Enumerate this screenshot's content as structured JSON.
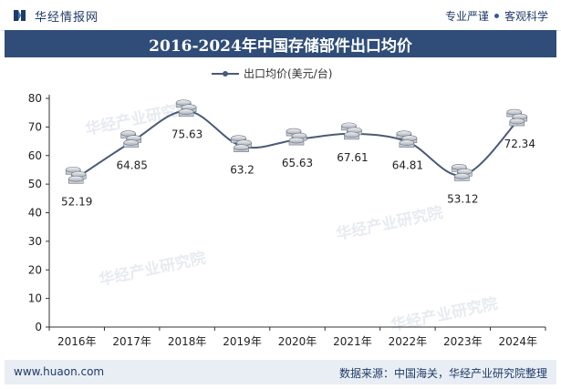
{
  "header": {
    "brand": "华经情报网",
    "tagline_left": "专业严谨",
    "tagline_right": "客观科学"
  },
  "title": "2016-2024年中国存储部件出口均价",
  "footer": {
    "website": "www.huaon.com",
    "source": "数据来源：中国海关，华经产业研究院整理"
  },
  "watermark": "华经产业研究院",
  "colors": {
    "title_bg": "#2f4d78",
    "line": "#4a5a78",
    "footer_bg": "#e9eef5"
  },
  "chart_data": {
    "type": "line",
    "categories": [
      "2016年",
      "2017年",
      "2018年",
      "2019年",
      "2020年",
      "2021年",
      "2022年",
      "2023年",
      "2024年"
    ],
    "series": [
      {
        "name": "出口均价(美元/台)",
        "values": [
          52.19,
          64.85,
          75.63,
          63.2,
          65.63,
          67.61,
          64.81,
          53.12,
          72.34
        ]
      }
    ],
    "data_labels": [
      "52.19",
      "64.85",
      "75.63",
      "63.2",
      "65.63",
      "67.61",
      "64.81",
      "53.12",
      "72.34"
    ],
    "yticks": [
      "0",
      "10",
      "20",
      "30",
      "40",
      "50",
      "60",
      "70",
      "80"
    ],
    "ylim": [
      0,
      80
    ],
    "legend_position": "top",
    "grid": false,
    "marker": "coin-stack"
  }
}
